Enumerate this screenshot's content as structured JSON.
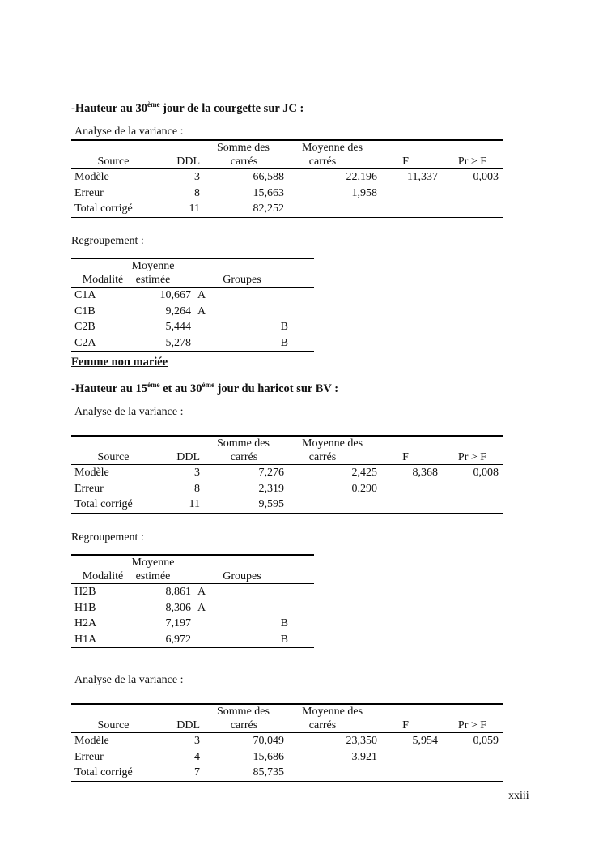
{
  "section1": {
    "title_pre": "-Hauteur au 30",
    "title_sup": "ème",
    "title_post": " jour de la courgette sur JC :",
    "anova_label": "Analyse de la variance :",
    "group_label": "Regroupement :"
  },
  "anova_headers": {
    "source": "Source",
    "ddl": "DDL",
    "somme_1": "Somme des",
    "somme_2": "carrés",
    "moyenne_1": "Moyenne des",
    "moyenne_2": "carrés",
    "f": "F",
    "pr": "Pr > F"
  },
  "group_headers": {
    "modalite": "Modalité",
    "moyenne_1": "Moyenne",
    "moyenne_2": "estimée",
    "groupes": "Groupes"
  },
  "anova1": [
    [
      "Modèle",
      "3",
      "66,588",
      "22,196",
      "11,337",
      "0,003"
    ],
    [
      "Erreur",
      "8",
      "15,663",
      "1,958",
      "",
      ""
    ],
    [
      "Total corrigé",
      "11",
      "82,252",
      "",
      "",
      ""
    ]
  ],
  "group1": [
    [
      "C1A",
      "10,667",
      "A",
      ""
    ],
    [
      "C1B",
      "9,264",
      "A",
      ""
    ],
    [
      "C2B",
      "5,444",
      "",
      "B"
    ],
    [
      "C2A",
      "5,278",
      "",
      "B"
    ]
  ],
  "subheading": "Femme non mariée",
  "section2": {
    "title_pre": "-Hauteur au 15",
    "title_sup1": "ème",
    "title_mid": " et au 30",
    "title_sup2": "ème",
    "title_post": " jour du haricot sur BV :",
    "anova_label": "Analyse de la variance :",
    "group_label": "Regroupement :",
    "anova_label_2": "Analyse de la variance :"
  },
  "anova2": [
    [
      "Modèle",
      "3",
      "7,276",
      "2,425",
      "8,368",
      "0,008"
    ],
    [
      "Erreur",
      "8",
      "2,319",
      "0,290",
      "",
      ""
    ],
    [
      "Total corrigé",
      "11",
      "9,595",
      "",
      "",
      ""
    ]
  ],
  "group2": [
    [
      "H2B",
      "8,861",
      "A",
      ""
    ],
    [
      "H1B",
      "8,306",
      "A",
      ""
    ],
    [
      "H2A",
      "7,197",
      "",
      "B"
    ],
    [
      "H1A",
      "6,972",
      "",
      "B"
    ]
  ],
  "anova3": [
    [
      "Modèle",
      "3",
      "70,049",
      "23,350",
      "5,954",
      "0,059"
    ],
    [
      "Erreur",
      "4",
      "15,686",
      "3,921",
      "",
      ""
    ],
    [
      "Total corrigé",
      "7",
      "85,735",
      "",
      "",
      ""
    ]
  ],
  "page_number": "xxiii"
}
